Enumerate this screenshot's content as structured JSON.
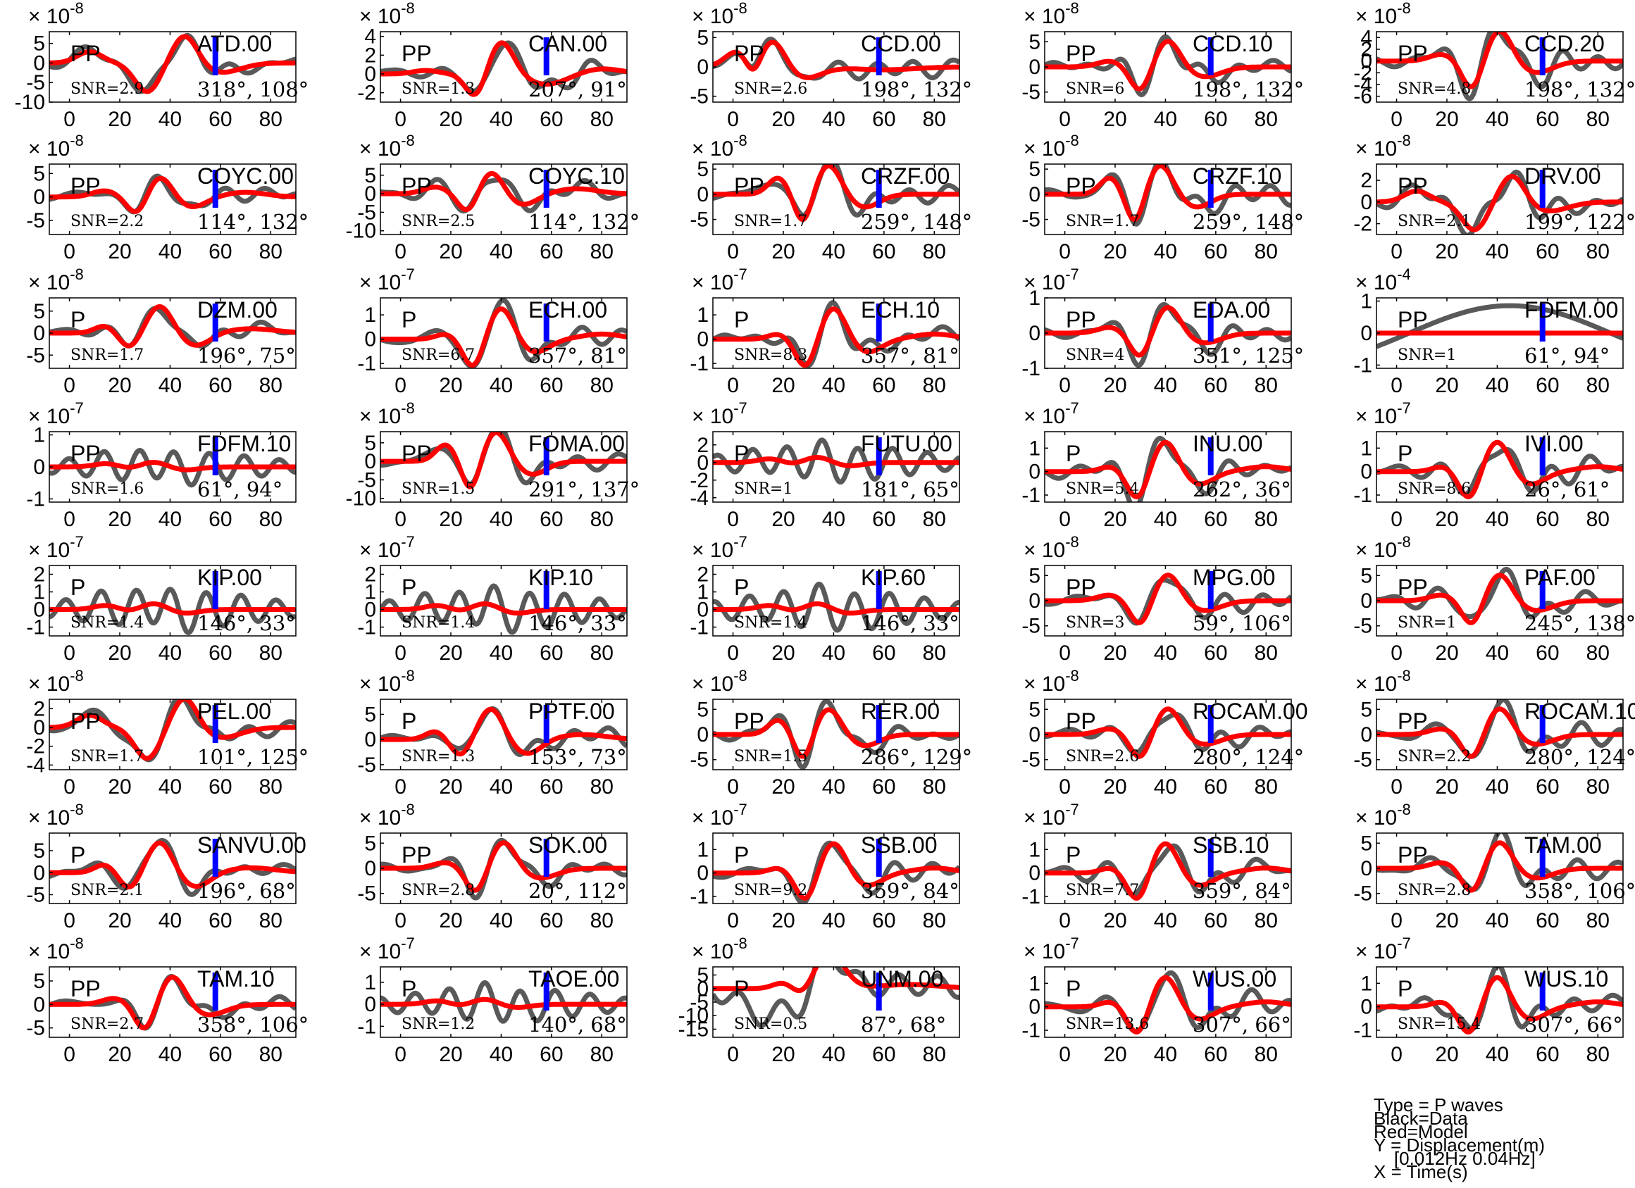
{
  "chart_data": {
    "type": "line",
    "xlim": [
      -8,
      90
    ],
    "xticks": [
      0,
      20,
      40,
      60,
      80
    ],
    "series_legend": {
      "data": "Black=Data",
      "model": "Red=Model"
    },
    "colors": {
      "data": "#595959",
      "model": "#ff0000",
      "marker": "#0000ff",
      "axes": "#000000"
    },
    "panels": [
      {
        "station": "ATD.00",
        "phase": "PP",
        "snr": "SNR=2.9",
        "angles": "318°, 108°",
        "exponent": "-8",
        "ylim": [
          -10,
          8
        ],
        "yticks": [
          -10,
          -5,
          0,
          5
        ],
        "wave": "ppA"
      },
      {
        "station": "CAN.00",
        "phase": "PP",
        "snr": "SNR=1.3",
        "angles": "207°, 91°",
        "exponent": "-8",
        "ylim": [
          -3,
          4.5
        ],
        "yticks": [
          -2,
          0,
          2,
          4
        ],
        "wave": "ppB"
      },
      {
        "station": "CCD.00",
        "phase": "PP",
        "snr": "SNR=2.6",
        "angles": "198°, 132°",
        "exponent": "-8",
        "ylim": [
          -6,
          6
        ],
        "yticks": [
          -5,
          0,
          5
        ],
        "wave": "ppC"
      },
      {
        "station": "CCD.10",
        "phase": "PP",
        "snr": "SNR=6",
        "angles": "198°, 132°",
        "exponent": "-8",
        "ylim": [
          -7,
          7
        ],
        "yticks": [
          -5,
          0,
          5
        ],
        "wave": "ppD"
      },
      {
        "station": "CCD.20",
        "phase": "PP",
        "snr": "SNR=4.8",
        "angles": "198°, 132°",
        "exponent": "-8",
        "ylim": [
          -7,
          5
        ],
        "yticks": [
          -6,
          -4,
          -2,
          0,
          2,
          4
        ],
        "wave": "ppD"
      },
      {
        "station": "COYC.00",
        "phase": "PP",
        "snr": "SNR=2.2",
        "angles": "114°, 132°",
        "exponent": "-8",
        "ylim": [
          -8,
          7
        ],
        "yticks": [
          -5,
          0,
          5
        ],
        "wave": "ppE"
      },
      {
        "station": "COYC.10",
        "phase": "PP",
        "snr": "SNR=2.5",
        "angles": "114°, 132°",
        "exponent": "-8",
        "ylim": [
          -11,
          8
        ],
        "yticks": [
          -10,
          -5,
          0,
          5
        ],
        "wave": "ppE"
      },
      {
        "station": "CRZF.00",
        "phase": "PP",
        "snr": "SNR=1.7",
        "angles": "259°, 148°",
        "exponent": "-8",
        "ylim": [
          -8,
          6
        ],
        "yticks": [
          -5,
          0,
          5
        ],
        "wave": "ppF"
      },
      {
        "station": "CRZF.10",
        "phase": "PP",
        "snr": "SNR=1.7",
        "angles": "259°, 148°",
        "exponent": "-8",
        "ylim": [
          -8,
          6
        ],
        "yticks": [
          -5,
          0,
          5
        ],
        "wave": "ppF"
      },
      {
        "station": "DRV.00",
        "phase": "PP",
        "snr": "SNR=2.1",
        "angles": "199°, 122°",
        "exponent": "-8",
        "ylim": [
          -3,
          3.5
        ],
        "yticks": [
          -2,
          0,
          2
        ],
        "wave": "ppA"
      },
      {
        "station": "DZM.00",
        "phase": "P",
        "snr": "SNR=1.7",
        "angles": "196°, 75°",
        "exponent": "-8",
        "ylim": [
          -8,
          8
        ],
        "yticks": [
          -5,
          0,
          5
        ],
        "wave": "pA"
      },
      {
        "station": "ECH.00",
        "phase": "P",
        "snr": "SNR=6.7",
        "angles": "357°, 81°",
        "exponent": "-7",
        "ylim": [
          -1.2,
          1.7
        ],
        "yticks": [
          -1,
          0,
          1
        ],
        "wave": "pB"
      },
      {
        "station": "ECH.10",
        "phase": "P",
        "snr": "SNR=8.3",
        "angles": "357°, 81°",
        "exponent": "-7",
        "ylim": [
          -1.2,
          1.7
        ],
        "yticks": [
          -1,
          0,
          1
        ],
        "wave": "pB"
      },
      {
        "station": "EDA.00",
        "phase": "PP",
        "snr": "SNR=4",
        "angles": "351°, 125°",
        "exponent": "-7",
        "ylim": [
          -1,
          1
        ],
        "yticks": [
          -1,
          0,
          1
        ],
        "wave": "ppD"
      },
      {
        "station": "FDFM.00",
        "phase": "PP",
        "snr": "SNR=1",
        "angles": "61°, 94°",
        "exponent": "-4",
        "ylim": [
          -1.1,
          1.1
        ],
        "yticks": [
          -1,
          0,
          1
        ],
        "wave": "flat"
      },
      {
        "station": "FDFM.10",
        "phase": "PP",
        "snr": "SNR=1.6",
        "angles": "61°, 94°",
        "exponent": "-7",
        "ylim": [
          -1.1,
          1.1
        ],
        "yticks": [
          -1,
          0,
          1
        ],
        "wave": "weak"
      },
      {
        "station": "FOMA.00",
        "phase": "PP",
        "snr": "SNR=1.5",
        "angles": "291°, 137°",
        "exponent": "-8",
        "ylim": [
          -11,
          8
        ],
        "yticks": [
          -10,
          -5,
          0,
          5
        ],
        "wave": "ppF"
      },
      {
        "station": "FUTU.00",
        "phase": "P",
        "snr": "SNR=1",
        "angles": "181°, 65°",
        "exponent": "-7",
        "ylim": [
          -4.5,
          3.5
        ],
        "yticks": [
          -4,
          -2,
          0,
          2
        ],
        "wave": "weak"
      },
      {
        "station": "INU.00",
        "phase": "P",
        "snr": "SNR=5.4",
        "angles": "262°, 36°",
        "exponent": "-7",
        "ylim": [
          -1.3,
          1.7
        ],
        "yticks": [
          -1,
          0,
          1
        ],
        "wave": "pB"
      },
      {
        "station": "IVI.00",
        "phase": "P",
        "snr": "SNR=8.6",
        "angles": "26°, 61°",
        "exponent": "-7",
        "ylim": [
          -1.3,
          1.7
        ],
        "yticks": [
          -1,
          0,
          1
        ],
        "wave": "pB"
      },
      {
        "station": "KIP.00",
        "phase": "P",
        "snr": "SNR=1.4",
        "angles": "146°, 33°",
        "exponent": "-7",
        "ylim": [
          -1.5,
          2.5
        ],
        "yticks": [
          -1,
          0,
          1,
          2
        ],
        "wave": "weak"
      },
      {
        "station": "KIP.10",
        "phase": "P",
        "snr": "SNR=1.4",
        "angles": "146°, 33°",
        "exponent": "-7",
        "ylim": [
          -1.5,
          2.5
        ],
        "yticks": [
          -1,
          0,
          1,
          2
        ],
        "wave": "weak"
      },
      {
        "station": "KIP.60",
        "phase": "P",
        "snr": "SNR=1.4",
        "angles": "146°, 33°",
        "exponent": "-7",
        "ylim": [
          -1.5,
          2.5
        ],
        "yticks": [
          -1,
          0,
          1,
          2
        ],
        "wave": "weak"
      },
      {
        "station": "MPG.00",
        "phase": "PP",
        "snr": "SNR=3",
        "angles": "59°, 106°",
        "exponent": "-8",
        "ylim": [
          -7,
          7
        ],
        "yticks": [
          -5,
          0,
          5
        ],
        "wave": "ppD"
      },
      {
        "station": "PAF.00",
        "phase": "PP",
        "snr": "SNR=1",
        "angles": "245°, 138°",
        "exponent": "-8",
        "ylim": [
          -7,
          7
        ],
        "yticks": [
          -5,
          0,
          5
        ],
        "wave": "ppD"
      },
      {
        "station": "PEL.00",
        "phase": "PP",
        "snr": "SNR=1.7",
        "angles": "101°, 125°",
        "exponent": "-8",
        "ylim": [
          -4.5,
          3
        ],
        "yticks": [
          -4,
          -2,
          0,
          2
        ],
        "wave": "ppA"
      },
      {
        "station": "PPTF.00",
        "phase": "P",
        "snr": "SNR=1.3",
        "angles": "153°, 73°",
        "exponent": "-8",
        "ylim": [
          -6,
          8
        ],
        "yticks": [
          -5,
          0,
          5
        ],
        "wave": "pA"
      },
      {
        "station": "RER.00",
        "phase": "PP",
        "snr": "SNR=1.5",
        "angles": "286°, 129°",
        "exponent": "-8",
        "ylim": [
          -7,
          7
        ],
        "yticks": [
          -5,
          0,
          5
        ],
        "wave": "ppF"
      },
      {
        "station": "ROCAM.00",
        "phase": "PP",
        "snr": "SNR=2.6",
        "angles": "280°, 124°",
        "exponent": "-8",
        "ylim": [
          -7,
          7
        ],
        "yticks": [
          -5,
          0,
          5
        ],
        "wave": "ppD"
      },
      {
        "station": "ROCAM.10",
        "phase": "PP",
        "snr": "SNR=2.2",
        "angles": "280°, 124°",
        "exponent": "-8",
        "ylim": [
          -7,
          7
        ],
        "yticks": [
          -5,
          0,
          5
        ],
        "wave": "ppD"
      },
      {
        "station": "SANVU.00",
        "phase": "P",
        "snr": "SNR=2.1",
        "angles": "196°, 68°",
        "exponent": "-8",
        "ylim": [
          -7,
          9
        ],
        "yticks": [
          -5,
          0,
          5
        ],
        "wave": "pA"
      },
      {
        "station": "SOK.00",
        "phase": "PP",
        "snr": "SNR=2.8",
        "angles": "20°, 112°",
        "exponent": "-8",
        "ylim": [
          -7,
          7
        ],
        "yticks": [
          -5,
          0,
          5
        ],
        "wave": "ppD"
      },
      {
        "station": "SSB.00",
        "phase": "P",
        "snr": "SNR=9.2",
        "angles": "359°, 84°",
        "exponent": "-7",
        "ylim": [
          -1.3,
          1.7
        ],
        "yticks": [
          -1,
          0,
          1
        ],
        "wave": "pB"
      },
      {
        "station": "SSB.10",
        "phase": "P",
        "snr": "SNR=7.7",
        "angles": "359°, 84°",
        "exponent": "-7",
        "ylim": [
          -1.3,
          1.7
        ],
        "yticks": [
          -1,
          0,
          1
        ],
        "wave": "pB"
      },
      {
        "station": "TAM.00",
        "phase": "PP",
        "snr": "SNR=2.8",
        "angles": "358°, 106°",
        "exponent": "-8",
        "ylim": [
          -7,
          7
        ],
        "yticks": [
          -5,
          0,
          5
        ],
        "wave": "ppD"
      },
      {
        "station": "TAM.10",
        "phase": "PP",
        "snr": "SNR=2.7",
        "angles": "358°, 106°",
        "exponent": "-8",
        "ylim": [
          -7,
          8
        ],
        "yticks": [
          -5,
          0,
          5
        ],
        "wave": "ppD"
      },
      {
        "station": "TAOE.00",
        "phase": "P",
        "snr": "SNR=1.2",
        "angles": "140°, 68°",
        "exponent": "-7",
        "ylim": [
          -1.5,
          1.7
        ],
        "yticks": [
          -1,
          0,
          1
        ],
        "wave": "weak"
      },
      {
        "station": "UNM.00",
        "phase": "P",
        "snr": "SNR=0.5",
        "angles": "87°, 68°",
        "exponent": "-8",
        "ylim": [
          -18,
          8
        ],
        "yticks": [
          -15,
          -10,
          -5,
          0,
          5
        ],
        "wave": "pC"
      },
      {
        "station": "WUS.00",
        "phase": "P",
        "snr": "SNR=13.6",
        "angles": "307°, 66°",
        "exponent": "-7",
        "ylim": [
          -1.3,
          1.7
        ],
        "yticks": [
          -1,
          0,
          1
        ],
        "wave": "pB"
      },
      {
        "station": "WUS.10",
        "phase": "P",
        "snr": "SNR=15.4",
        "angles": "307°, 66°",
        "exponent": "-7",
        "ylim": [
          -1.3,
          1.7
        ],
        "yticks": [
          -1,
          0,
          1
        ],
        "wave": "pB"
      }
    ]
  },
  "legend": {
    "line1": "Type = P waves",
    "line2": "Black=Data",
    "line3": "Red=Model",
    "line4": "Y = Displacement(m)",
    "line5": "    [0.012Hz 0.04Hz]",
    "line6": "X = Time(s)"
  }
}
